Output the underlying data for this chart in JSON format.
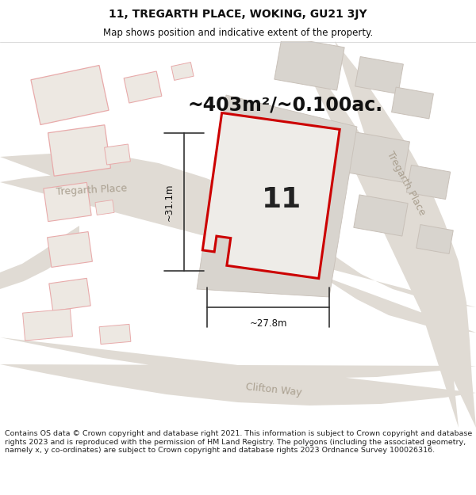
{
  "title_line1": "11, TREGARTH PLACE, WOKING, GU21 3JY",
  "title_line2": "Map shows position and indicative extent of the property.",
  "area_text": "~403m²/~0.100ac.",
  "label_number": "11",
  "dim_height": "~31.1m",
  "dim_width": "~27.8m",
  "footer_text": "Contains OS data © Crown copyright and database right 2021. This information is subject to Crown copyright and database rights 2023 and is reproduced with the permission of HM Land Registry. The polygons (including the associated geometry, namely x, y co-ordinates) are subject to Crown copyright and database rights 2023 Ordnance Survey 100026316.",
  "map_bg": "#f0eeeb",
  "road_fill": "#e0dbd4",
  "building_fill_gray": "#d8d4ce",
  "building_fill_light": "#ede8e2",
  "building_outline_red": "#e8aaaa",
  "building_outline_gray": "#c8c0b8",
  "plot_fill": "#eeece8",
  "plot_outline": "#cc0000",
  "dim_color": "#333333",
  "road_label_color": "#aaa090",
  "title_fs": 10,
  "sub_fs": 8.5,
  "area_fs": 17,
  "num_fs": 26,
  "dim_fs": 8.5,
  "road_fs": 9,
  "footer_fs": 6.8,
  "white": "#ffffff"
}
